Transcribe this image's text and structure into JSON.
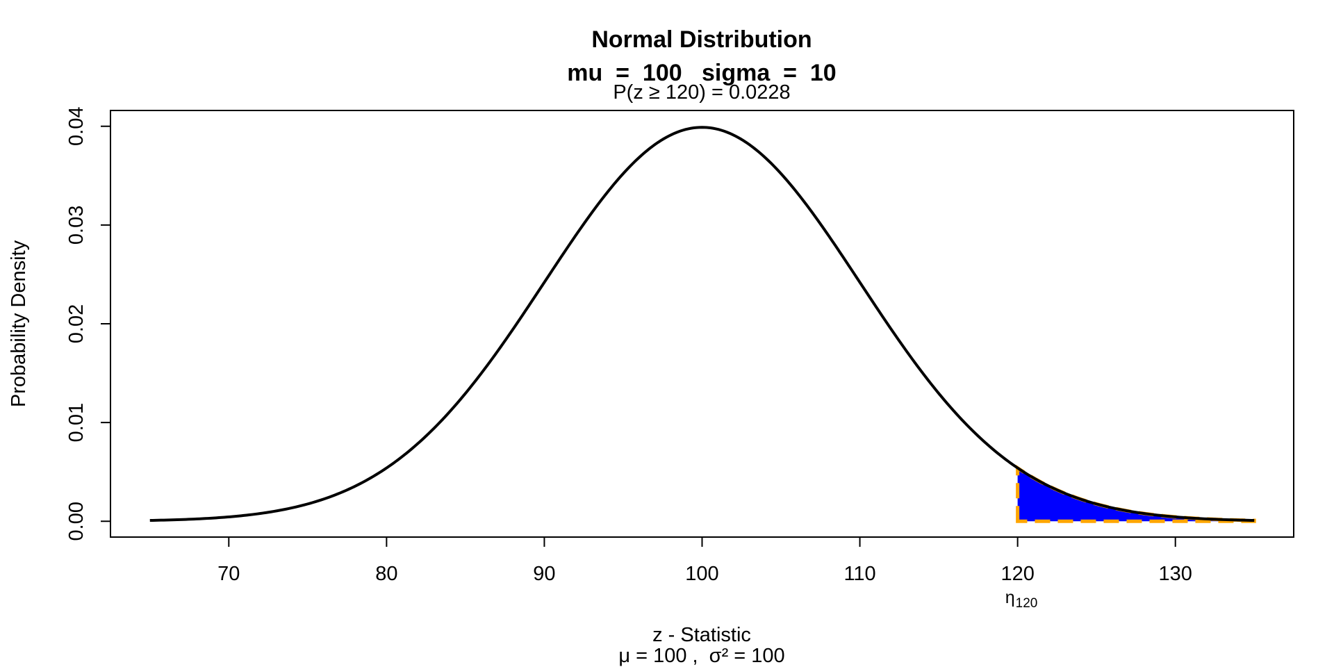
{
  "chart_data": {
    "type": "line",
    "title_line1": "Normal Distribution",
    "title_line2": "mu  =  100   sigma  =  10",
    "annotation": "P(z ≥ 120) = 0.0228",
    "xlabel": "z - Statistic",
    "xlabel_sub": "μ = 100 ,  σ² = 100",
    "ylabel": "Probability Density",
    "xlim": [
      62.5,
      137.5
    ],
    "ylim": [
      -0.0016,
      0.0416
    ],
    "x_ticks": [
      70,
      80,
      90,
      100,
      110,
      120,
      130
    ],
    "y_ticks": [
      "0.00",
      "0.01",
      "0.02",
      "0.03",
      "0.04"
    ],
    "y_tick_values": [
      0,
      0.01,
      0.02,
      0.03,
      0.04
    ],
    "mu": 100,
    "sigma": 10,
    "curve_range": [
      65,
      135
    ],
    "shade_from": 120,
    "shade_to": 135,
    "critical_value": 120,
    "critical_label": "η",
    "critical_label_sub": "120",
    "colors": {
      "curve": "#000000",
      "shade": "#0000ff",
      "shade_border": "#ffa500"
    }
  }
}
